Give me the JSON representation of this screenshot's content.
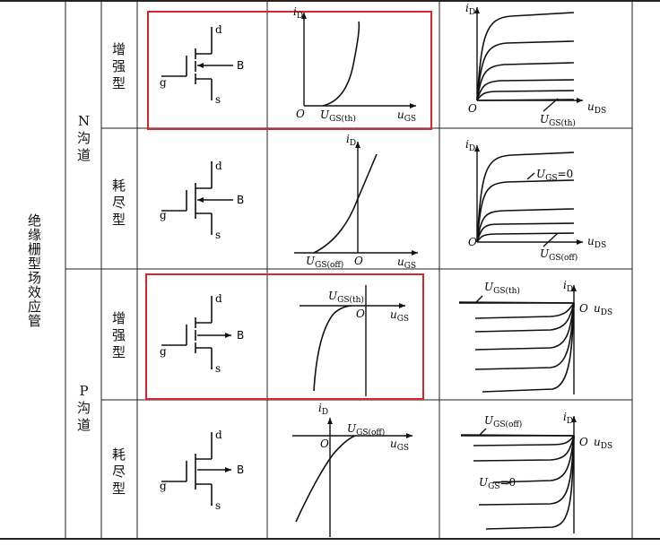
{
  "group_label": "绝缘栅型场效应管",
  "channels": [
    {
      "label": "N沟道",
      "letter": "N",
      "chars": [
        "沟",
        "道"
      ]
    },
    {
      "label": "P沟道",
      "letter": "P",
      "chars": [
        "沟",
        "道"
      ]
    }
  ],
  "types": [
    {
      "chars": [
        "增",
        "强",
        "型"
      ]
    },
    {
      "chars": [
        "耗",
        "尽",
        "型"
      ]
    },
    {
      "chars": [
        "增",
        "强",
        "型"
      ]
    },
    {
      "chars": [
        "耗",
        "尽",
        "型"
      ]
    }
  ],
  "symbol_labels": {
    "d": "d",
    "g": "g",
    "s": "s",
    "b": "B"
  },
  "transfer_labels": {
    "y_axis": "i",
    "y_sub": "D",
    "x_axis": "u",
    "x_sub": "GS",
    "origin": "O",
    "n_enh_threshold": "U",
    "n_enh_threshold_sub": "GS(th)",
    "n_dep_cutoff": "U",
    "n_dep_cutoff_sub": "GS(off)",
    "p_enh_threshold": "U",
    "p_enh_threshold_sub": "GS(th)",
    "p_dep_cutoff": "U",
    "p_dep_cutoff_sub": "GS(off)"
  },
  "output_labels": {
    "y_axis": "i",
    "y_sub": "D",
    "x_axis": "u",
    "x_sub": "DS",
    "origin": "O",
    "n_enh_param": "U",
    "n_enh_param_sub": "GS(th)",
    "n_dep_param": "U",
    "n_dep_param_sub": "GS",
    "n_dep_param_val": "=0",
    "p_enh_param": "U",
    "p_enh_param_sub": "GS(th)",
    "p_dep_param_top": "U",
    "p_dep_param_top_sub": "GS(off)",
    "p_dep_param": "U",
    "p_dep_param_sub": "GS",
    "p_dep_param_val": "=0"
  },
  "highlight_color": "#d9262c"
}
